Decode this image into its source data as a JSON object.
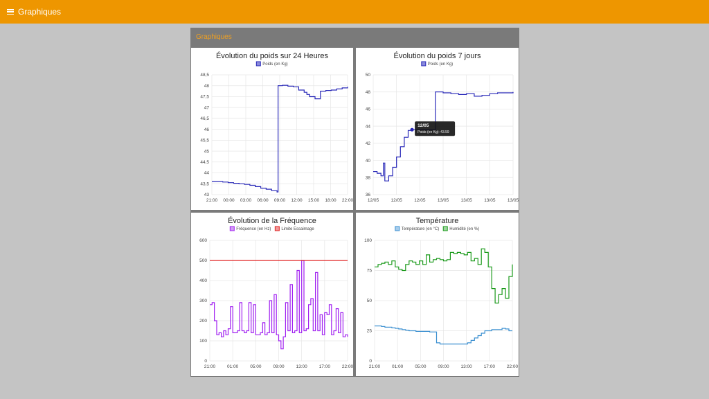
{
  "topbar": {
    "title": "Graphiques",
    "color": "#ee9600"
  },
  "panel": {
    "title": "Graphiques"
  },
  "charts": [
    {
      "id": "c1",
      "title": "Évolution du poids sur 24 Heures",
      "legend": [
        {
          "label": "Poids (en Kg)",
          "color": "#2828b8",
          "fill": "#8b8bdc"
        }
      ],
      "y_ticks": [
        "48,5",
        "48",
        "47,5",
        "47",
        "46,5",
        "46",
        "45,5",
        "45",
        "44,5",
        "44",
        "43,5",
        "43"
      ],
      "x_ticks": [
        "21:00",
        "00:00",
        "03:00",
        "06:00",
        "09:00",
        "12:00",
        "15:00",
        "18:00",
        "22:00"
      ]
    },
    {
      "id": "c2",
      "title": "Évolution du poids 7 jours",
      "legend": [
        {
          "label": "Poids (en Kg)",
          "color": "#2828b8",
          "fill": "#8b8bdc"
        }
      ],
      "y_ticks": [
        "50",
        "48",
        "46",
        "44",
        "42",
        "40",
        "38",
        "36"
      ],
      "x_ticks": [
        "12/05",
        "12/05",
        "12/05",
        "13/05",
        "13/05",
        "13/05",
        "13/05"
      ],
      "tooltip": {
        "title": "12/05",
        "label": "Poids (en Kg):",
        "value": "43.59"
      }
    },
    {
      "id": "c3",
      "title": "Évolution de la Fréquence",
      "legend": [
        {
          "label": "Fréquence (en Hz)",
          "color": "#a020f0",
          "fill": "#d29cf5"
        },
        {
          "label": "Limite Essaimage",
          "color": "#e02020",
          "fill": "#f09a9a"
        }
      ],
      "y_ticks": [
        "600",
        "500",
        "400",
        "300",
        "200",
        "100",
        "0"
      ],
      "x_ticks": [
        "21:00",
        "01:00",
        "05:00",
        "09:00",
        "13:00",
        "17:00",
        "22:00"
      ]
    },
    {
      "id": "c4",
      "title": "Température",
      "legend": [
        {
          "label": "Température (en °C)",
          "color": "#3a8fd0",
          "fill": "#a8cdec"
        },
        {
          "label": "Humidité (en %)",
          "color": "#1a9a1a",
          "fill": "#9fd59f"
        }
      ],
      "y_ticks": [
        "100",
        "75",
        "50",
        "25",
        "0"
      ],
      "x_ticks": [
        "21:00",
        "01:00",
        "05:00",
        "09:00",
        "13:00",
        "17:00",
        "22:00"
      ]
    }
  ],
  "chart_data": [
    {
      "type": "line",
      "title": "Évolution du poids sur 24 Heures",
      "ylim": [
        43,
        48.5
      ],
      "series": [
        {
          "name": "Poids (en Kg)",
          "color": "#2828b8",
          "x": [
            0,
            1,
            2,
            3,
            4,
            5,
            6,
            7,
            8,
            9,
            10,
            11,
            12,
            12.2,
            13,
            14,
            15,
            16,
            17,
            17.5,
            18,
            19,
            20,
            21,
            22,
            23,
            24,
            25
          ],
          "y": [
            43.6,
            43.6,
            43.58,
            43.55,
            43.52,
            43.5,
            43.47,
            43.43,
            43.37,
            43.3,
            43.25,
            43.18,
            43.12,
            48.0,
            48.02,
            47.98,
            47.95,
            47.8,
            47.7,
            47.6,
            47.5,
            47.4,
            47.75,
            47.78,
            47.8,
            47.85,
            47.9,
            47.95
          ]
        }
      ]
    },
    {
      "type": "line",
      "title": "Évolution du poids 7 jours",
      "ylim": [
        36,
        50
      ],
      "series": [
        {
          "name": "Poids (en Kg)",
          "color": "#2828b8",
          "x": [
            0,
            0.5,
            1,
            1.3,
            1.5,
            1.6,
            2,
            2.5,
            3,
            3.5,
            4,
            4.5,
            5,
            5.5,
            6,
            7,
            8,
            9,
            10,
            11,
            12,
            13,
            14,
            15,
            16,
            17,
            18
          ],
          "y": [
            38.7,
            38.5,
            38.2,
            39.7,
            37.6,
            37.6,
            38.2,
            39.2,
            40.4,
            41.6,
            42.7,
            43.5,
            43.59,
            43.6,
            43.6,
            43.6,
            48.0,
            47.9,
            47.8,
            47.7,
            47.8,
            47.5,
            47.6,
            47.8,
            47.9,
            47.9,
            48.0
          ]
        }
      ]
    },
    {
      "type": "line",
      "title": "Évolution de la Fréquence",
      "ylim": [
        0,
        600
      ],
      "series": [
        {
          "name": "Fréquence (en Hz)",
          "color": "#a020f0",
          "x": [
            0,
            1,
            2,
            3,
            4,
            5,
            6,
            7,
            8,
            9,
            10,
            11,
            12,
            13,
            14,
            15,
            16,
            17,
            18,
            19,
            20,
            21,
            22,
            23,
            24,
            25,
            26,
            27,
            28,
            29,
            30,
            31,
            32,
            33,
            34,
            35,
            36,
            37,
            38,
            39,
            40,
            41,
            42,
            43,
            44,
            45,
            46,
            47,
            48,
            49,
            50,
            51,
            52,
            53,
            54,
            55,
            56,
            57,
            58,
            59,
            60
          ],
          "y": [
            280,
            290,
            200,
            130,
            140,
            120,
            150,
            130,
            160,
            270,
            140,
            140,
            150,
            290,
            150,
            140,
            150,
            290,
            140,
            280,
            130,
            130,
            140,
            190,
            130,
            140,
            300,
            140,
            330,
            130,
            100,
            60,
            120,
            290,
            150,
            380,
            140,
            150,
            450,
            140,
            500,
            150,
            160,
            280,
            310,
            150,
            440,
            150,
            230,
            130,
            240,
            230,
            280,
            130,
            150,
            260,
            140,
            240,
            120,
            130,
            120
          ]
        },
        {
          "name": "Limite Essaimage",
          "color": "#e02020",
          "x": [
            0,
            60
          ],
          "y": [
            500,
            500
          ]
        }
      ]
    },
    {
      "type": "line",
      "title": "Température",
      "ylim": [
        0,
        100
      ],
      "series": [
        {
          "name": "Température (en °C)",
          "color": "#3a8fd0",
          "x": [
            0,
            1,
            2,
            3,
            4,
            5,
            6,
            7,
            8,
            9,
            10,
            11,
            12,
            13,
            14,
            15,
            16,
            17,
            18,
            19,
            20,
            21,
            22,
            23,
            24,
            25,
            26,
            27,
            28,
            29,
            30,
            31,
            32,
            33,
            34,
            35,
            36,
            37,
            38,
            39,
            40
          ],
          "y": [
            29,
            29,
            28.5,
            28,
            28,
            27.5,
            27,
            26.5,
            26,
            25.5,
            25,
            25,
            24.5,
            24.5,
            24.5,
            24.5,
            24,
            24,
            15,
            14,
            14,
            14,
            14,
            14,
            14,
            14,
            14,
            15,
            17,
            19,
            21,
            23,
            25,
            25,
            26,
            26,
            26,
            27,
            26.5,
            25,
            25
          ]
        },
        {
          "name": "Humidité (en %)",
          "color": "#1a9a1a",
          "x": [
            0,
            1,
            2,
            3,
            4,
            5,
            6,
            7,
            8,
            9,
            10,
            11,
            12,
            13,
            14,
            15,
            16,
            17,
            18,
            19,
            20,
            21,
            22,
            23,
            24,
            25,
            26,
            27,
            28,
            29,
            30,
            31,
            32,
            33,
            34,
            35,
            36,
            37,
            38,
            39,
            40
          ],
          "y": [
            78,
            80,
            81,
            82,
            80,
            83,
            78,
            76,
            75,
            80,
            83,
            82,
            80,
            83,
            80,
            88,
            82,
            84,
            85,
            84,
            83,
            84,
            90,
            89,
            90,
            89,
            88,
            90,
            83,
            85,
            80,
            93,
            90,
            78,
            60,
            48,
            55,
            60,
            52,
            70,
            80
          ]
        }
      ]
    }
  ]
}
